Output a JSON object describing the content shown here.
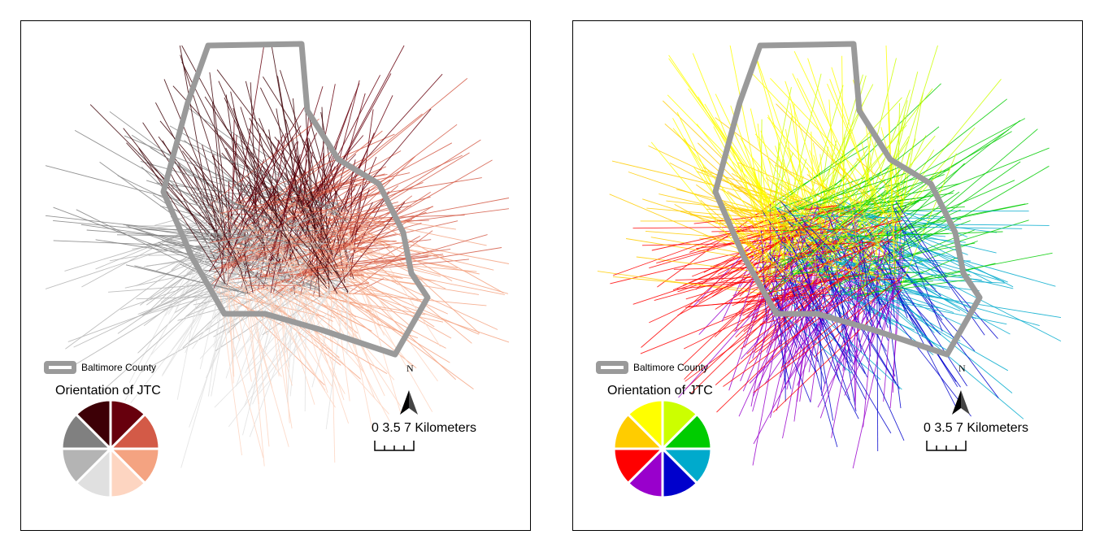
{
  "panels": [
    {
      "id": "left",
      "legend": {
        "boundary_label": "Baltimore County",
        "title": "Orientation of JTC",
        "orientation_colors": [
          "#67000d",
          "#d35a47",
          "#f4a381",
          "#fdd5c1",
          "#e0e0e0",
          "#b4b4b4",
          "#808080",
          "#3d0006"
        ]
      },
      "north_label": "N",
      "scale_text": "0 3.5 7 Kilometers"
    },
    {
      "id": "right",
      "legend": {
        "boundary_label": "Baltimore County",
        "title": "Orientation of JTC",
        "orientation_colors": [
          "#ccff00",
          "#00cc00",
          "#00aacc",
          "#0000cc",
          "#9900cc",
          "#ff0000",
          "#ffcc00",
          "#ffff00"
        ]
      },
      "north_label": "N",
      "scale_text": "0 3.5 7 Kilometers"
    }
  ],
  "boundary_color": "#9a9a9a"
}
